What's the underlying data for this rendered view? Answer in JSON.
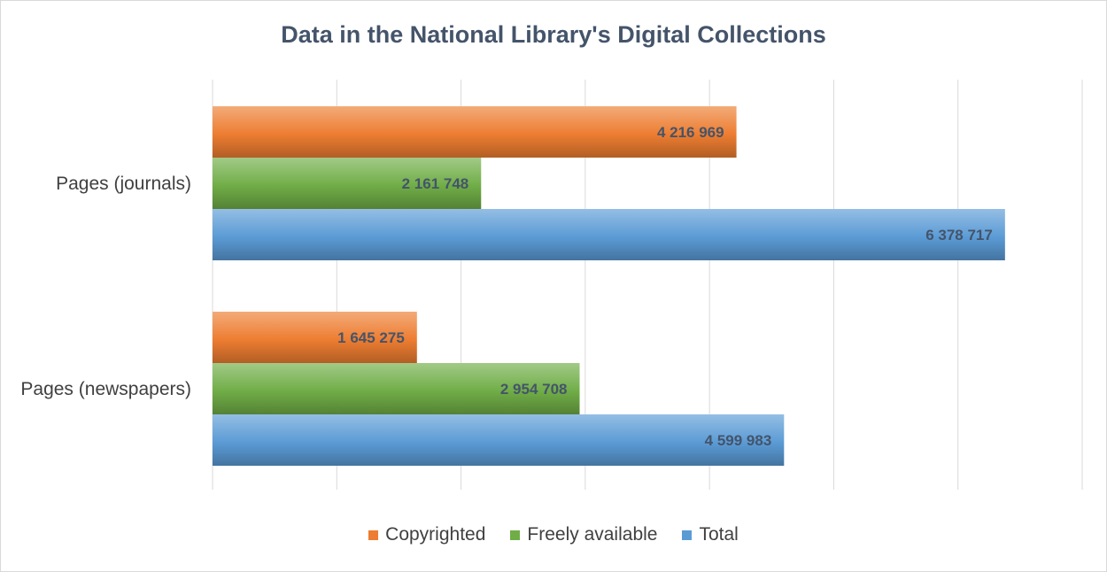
{
  "chart_data": {
    "type": "bar",
    "orientation": "horizontal",
    "title": "Data in the National Library's Digital Collections",
    "categories": [
      "Pages (journals)",
      "Pages (newspapers)"
    ],
    "series": [
      {
        "name": "Copyrighted",
        "color": "#ed7d31",
        "values": [
          4216969,
          1645275
        ],
        "labels": [
          "4 216 969",
          "1 645 275"
        ]
      },
      {
        "name": "Freely available",
        "color": "#70ad47",
        "values": [
          2161748,
          2954708
        ],
        "labels": [
          "2 161 748",
          "2 954 708"
        ]
      },
      {
        "name": "Total",
        "color": "#5b9bd5",
        "values": [
          6378717,
          4599983
        ],
        "labels": [
          "6 378 717",
          "4 599 983"
        ]
      }
    ],
    "xlim": [
      0,
      7000000
    ],
    "grid": "vertical",
    "legend_position": "bottom",
    "data_labels": "inside-end"
  }
}
